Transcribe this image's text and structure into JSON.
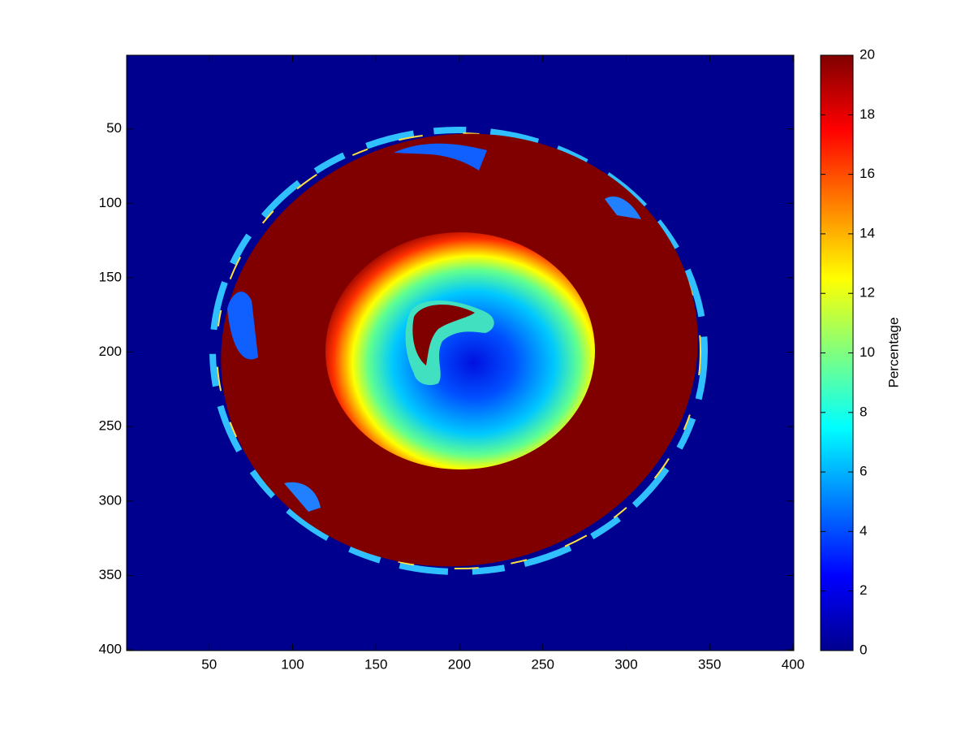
{
  "chart_data": {
    "type": "heatmap",
    "colormap": "jet",
    "colorbar_label": "Percentage",
    "xlim": [
      0.5,
      400.5
    ],
    "ylim": [
      0.5,
      400.5
    ],
    "y_reversed": true,
    "xticks": [
      50,
      100,
      150,
      200,
      250,
      300,
      350,
      400
    ],
    "yticks": [
      50,
      100,
      150,
      200,
      250,
      300,
      350,
      400
    ],
    "clim": [
      0,
      20
    ],
    "colorbar_ticks": [
      0,
      2,
      4,
      6,
      8,
      10,
      12,
      14,
      16,
      18,
      20
    ]
  }
}
